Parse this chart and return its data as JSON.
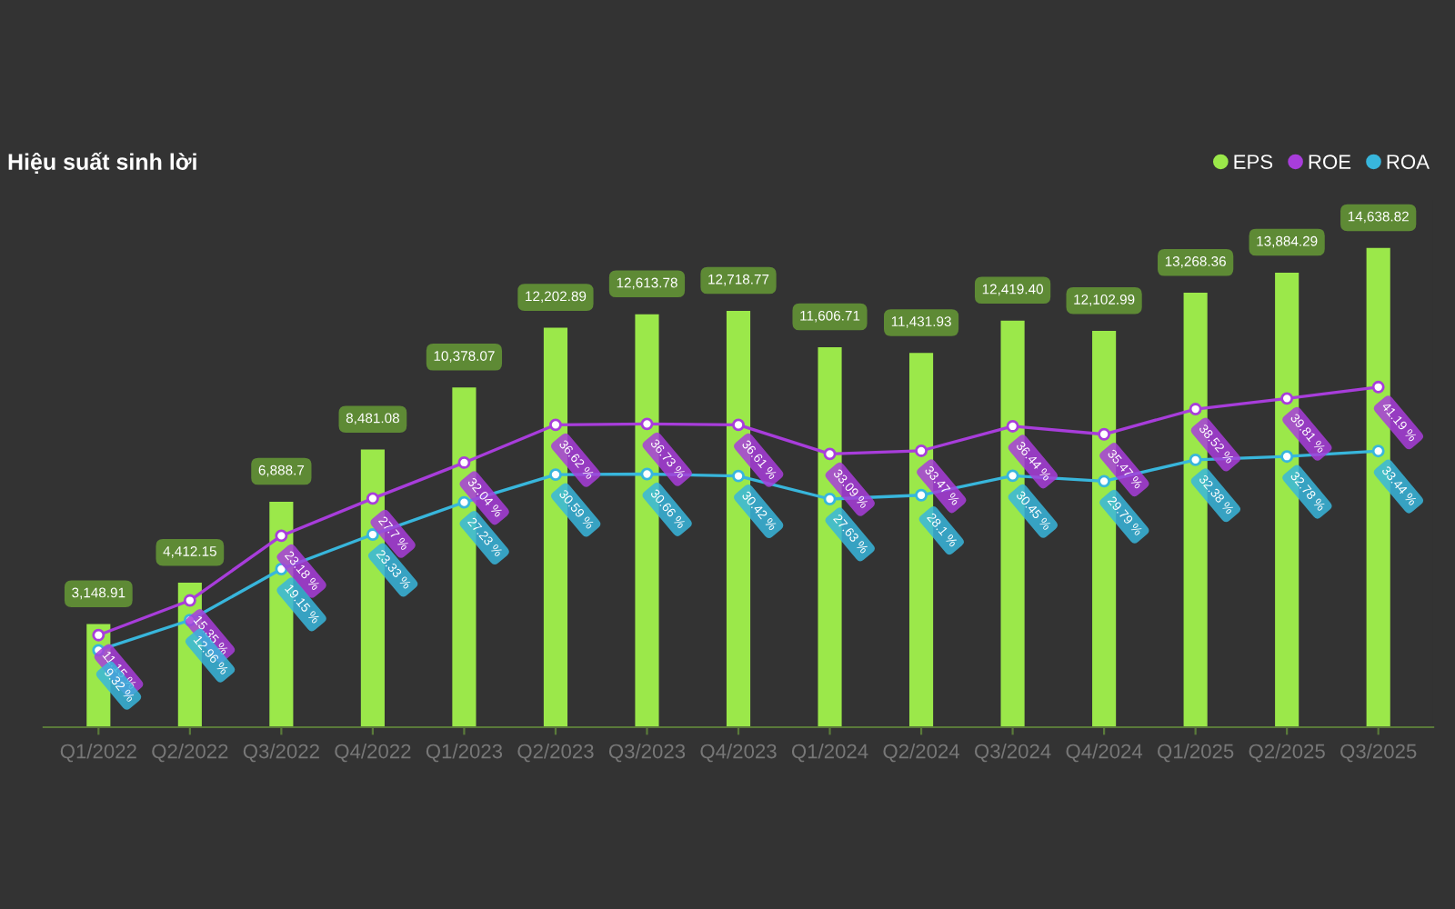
{
  "chart_data": {
    "type": "bar",
    "title": "Hiệu suất sinh lời",
    "categories": [
      "Q1/2022",
      "Q2/2022",
      "Q3/2022",
      "Q4/2022",
      "Q1/2023",
      "Q2/2023",
      "Q3/2023",
      "Q4/2023",
      "Q1/2024",
      "Q2/2024",
      "Q3/2024",
      "Q4/2024",
      "Q1/2025",
      "Q2/2025",
      "Q3/2025"
    ],
    "series": [
      {
        "name": "EPS",
        "color": "#9be84a",
        "values": [
          3148.91,
          4412.15,
          6888.7,
          8481.08,
          10378.07,
          12202.89,
          12613.78,
          12718.77,
          11606.71,
          11431.93,
          12419.4,
          12102.99,
          13268.36,
          13884.29,
          14638.82
        ],
        "value_labels": [
          "3,148.91",
          "4,412.15",
          "6,888.7",
          "8,481.08",
          "10,378.07",
          "12,202.89",
          "12,613.78",
          "12,718.77",
          "11,606.71",
          "11,431.93",
          "12,419.40",
          "12,102.99",
          "13,268.36",
          "13,884.29",
          "14,638.82"
        ]
      },
      {
        "name": "ROE",
        "type": "line",
        "axis": "y2",
        "color": "#a83ddb",
        "values": [
          11.15,
          15.35,
          23.18,
          27.7,
          32.04,
          36.62,
          36.73,
          36.61,
          33.09,
          33.47,
          36.44,
          35.47,
          38.52,
          39.81,
          41.19
        ],
        "value_labels": [
          "11.15 %",
          "15.35 %",
          "23.18 %",
          "27.7 %",
          "32.04 %",
          "36.62 %",
          "36.73 %",
          "36.61 %",
          "33.09 %",
          "33.47 %",
          "36.44 %",
          "35.47 %",
          "38.52 %",
          "39.81 %",
          "41.19 %"
        ]
      },
      {
        "name": "ROA",
        "type": "line",
        "axis": "y2",
        "color": "#38b6dc",
        "values": [
          9.32,
          12.96,
          19.15,
          23.33,
          27.23,
          30.59,
          30.66,
          30.42,
          27.63,
          28.1,
          30.45,
          29.79,
          32.38,
          32.78,
          33.44
        ],
        "value_labels": [
          "9.32 %",
          "12.96 %",
          "19.15 %",
          "23.33 %",
          "27.23 %",
          "30.59 %",
          "30.66 %",
          "30.42 %",
          "27.63 %",
          "28.1 %",
          "30.45 %",
          "29.79 %",
          "32.38 %",
          "32.78 %",
          "33.44 %"
        ]
      }
    ],
    "marker": "circle",
    "line_style": "solid",
    "grid": false,
    "legend": "top right",
    "tick_labels": "x"
  }
}
